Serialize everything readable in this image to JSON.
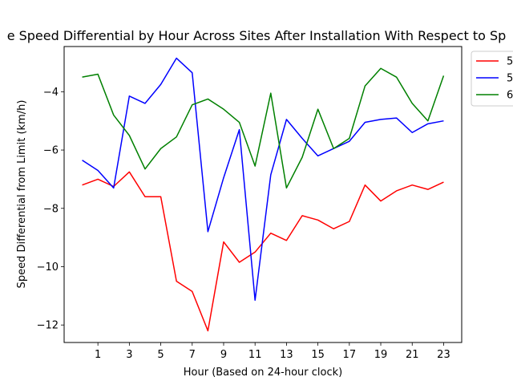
{
  "chart_data": {
    "type": "line",
    "title": "e Speed Differential by Hour Across Sites After Installation With Respect to Sp",
    "xlabel": "Hour (Based on 24-hour clock)",
    "ylabel": "Speed Differential from Limit (km/h)",
    "x": [
      0,
      1,
      2,
      3,
      4,
      5,
      6,
      7,
      8,
      9,
      10,
      11,
      12,
      13,
      14,
      15,
      16,
      17,
      18,
      19,
      20,
      21,
      22,
      23
    ],
    "xticks": [
      "1",
      "3",
      "5",
      "7",
      "9",
      "11",
      "13",
      "15",
      "17",
      "19",
      "21",
      "23"
    ],
    "xtick_values": [
      1,
      3,
      5,
      7,
      9,
      11,
      13,
      15,
      17,
      19,
      21,
      23
    ],
    "xlim": [
      -1.15,
      24.15
    ],
    "ylim": [
      -12.6,
      -2.45
    ],
    "yticks": [
      -12,
      -10,
      -8,
      -6,
      -4
    ],
    "ytick_labels": [
      "−12",
      "−10",
      "−8",
      "−6",
      "−4"
    ],
    "grid": false,
    "legend_position": "outside-top-right",
    "series": [
      {
        "name": "5",
        "color": "#ff0000",
        "values": [
          -7.2,
          -7.0,
          -7.25,
          -6.75,
          -7.6,
          -7.6,
          -10.5,
          -10.85,
          -12.2,
          -9.15,
          -9.85,
          -9.5,
          -8.85,
          -9.1,
          -8.25,
          -8.4,
          -8.7,
          -8.45,
          -7.2,
          -7.75,
          -7.4,
          -7.2,
          -7.35,
          -7.1
        ]
      },
      {
        "name": "5",
        "color": "#0000ff",
        "values": [
          -6.35,
          -6.7,
          -7.3,
          -4.15,
          -4.4,
          -3.75,
          -2.85,
          -3.35,
          -8.8,
          -6.95,
          -5.3,
          -11.15,
          -6.85,
          -4.95,
          -5.6,
          -6.2,
          -5.95,
          -5.7,
          -5.05,
          -4.95,
          -4.9,
          -5.4,
          -5.1,
          -5.0
        ]
      },
      {
        "name": "6",
        "color": "#008000",
        "values": [
          -3.5,
          -3.4,
          -4.8,
          -5.5,
          -6.65,
          -5.95,
          -5.55,
          -4.45,
          -4.25,
          -4.6,
          -5.05,
          -6.55,
          -4.05,
          -7.3,
          -6.25,
          -4.6,
          -5.95,
          -5.6,
          -3.8,
          -3.2,
          -3.5,
          -4.4,
          -5.0,
          -3.45
        ]
      }
    ]
  }
}
